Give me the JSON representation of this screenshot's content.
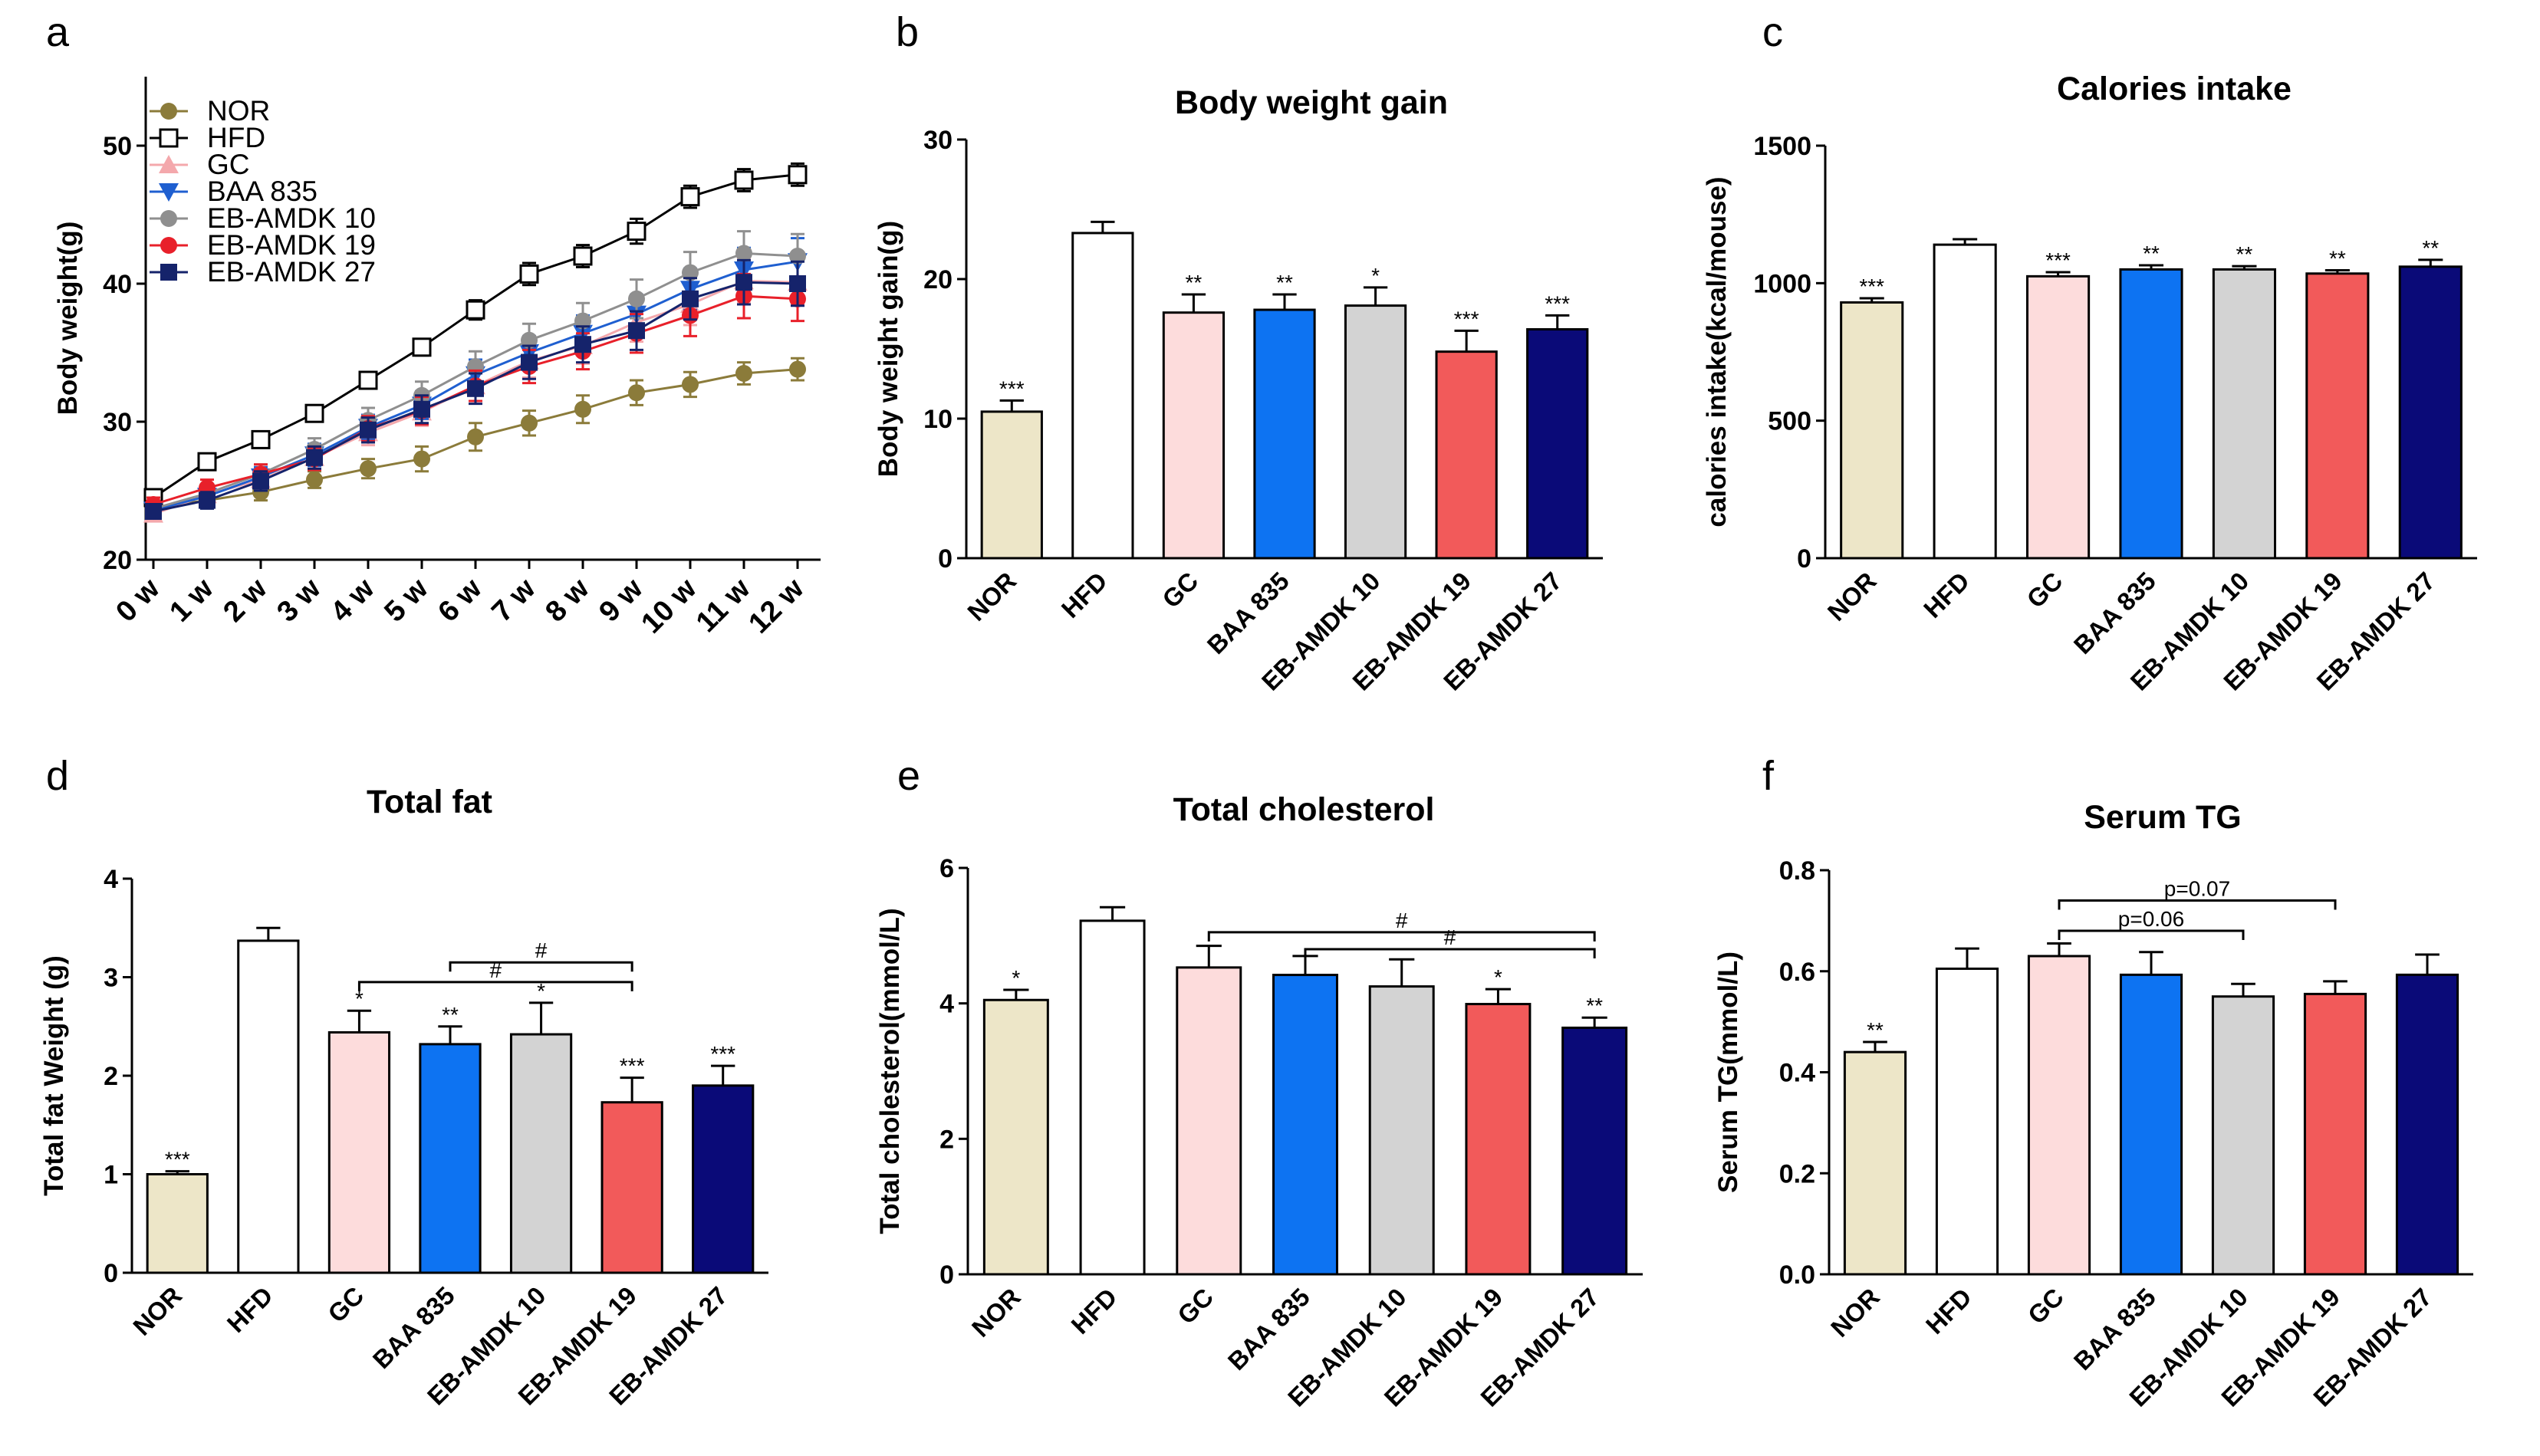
{
  "chart_data": [
    {
      "panel": "a",
      "type": "line",
      "title": "",
      "xlabel": "",
      "ylabel": "Body weight(g)",
      "ylim": [
        20,
        55
      ],
      "yticks": [
        20,
        30,
        40,
        50
      ],
      "x": [
        "0 w",
        "1 w",
        "2 w",
        "3 w",
        "4 w",
        "5 w",
        "6 w",
        "7 w",
        "8 w",
        "9 w",
        "10 w",
        "11 w",
        "12 w"
      ],
      "series": [
        {
          "name": "NOR",
          "color": "#8B7B3A",
          "marker": "circle",
          "values": [
            23.8,
            24.3,
            24.9,
            25.8,
            26.6,
            27.3,
            28.9,
            29.9,
            30.9,
            32.1,
            32.7,
            33.5,
            33.8
          ],
          "err": [
            0.5,
            0.5,
            0.6,
            0.6,
            0.7,
            0.9,
            1.0,
            0.9,
            1.0,
            0.9,
            0.9,
            0.8,
            0.8
          ]
        },
        {
          "name": "HFD",
          "color": "#000000",
          "marker": "square-open",
          "values": [
            24.5,
            27.1,
            28.7,
            30.6,
            33.0,
            35.4,
            38.1,
            40.7,
            42.0,
            43.8,
            46.3,
            47.5,
            47.9
          ],
          "err": [
            0.4,
            0.5,
            0.5,
            0.5,
            0.6,
            0.6,
            0.7,
            0.8,
            0.8,
            0.9,
            0.8,
            0.8,
            0.8
          ]
        },
        {
          "name": "GC",
          "color": "#F4A8AC",
          "marker": "triangle-up",
          "values": [
            23.3,
            24.7,
            25.8,
            27.4,
            29.2,
            30.7,
            32.6,
            34.4,
            35.5,
            37.2,
            38.5,
            40.2,
            40.1
          ],
          "err": [
            0.5,
            0.6,
            0.7,
            0.8,
            0.9,
            1.0,
            1.1,
            1.2,
            1.3,
            1.4,
            1.5,
            1.6,
            1.6
          ]
        },
        {
          "name": "BAA 835",
          "color": "#1F5FD0",
          "marker": "triangle-down",
          "values": [
            23.6,
            24.6,
            26.0,
            27.6,
            29.6,
            31.2,
            33.4,
            35.0,
            36.4,
            37.8,
            39.6,
            41.0,
            41.6
          ],
          "err": [
            0.5,
            0.6,
            0.7,
            0.8,
            0.9,
            1.0,
            1.1,
            1.2,
            1.3,
            1.4,
            1.5,
            1.6,
            1.7
          ]
        },
        {
          "name": "EB-AMDK 10",
          "color": "#8F8F8F",
          "marker": "circle",
          "values": [
            23.7,
            24.8,
            26.2,
            28.0,
            30.1,
            31.9,
            34.0,
            35.9,
            37.3,
            38.9,
            40.8,
            42.2,
            42.0
          ],
          "err": [
            0.5,
            0.6,
            0.7,
            0.8,
            0.9,
            1.0,
            1.1,
            1.2,
            1.3,
            1.4,
            1.5,
            1.6,
            1.6
          ]
        },
        {
          "name": "EB-AMDK 19",
          "color": "#E8202A",
          "marker": "circle",
          "values": [
            24.0,
            25.2,
            26.2,
            27.3,
            29.5,
            30.8,
            32.6,
            34.0,
            35.1,
            36.4,
            37.7,
            39.1,
            38.9
          ],
          "err": [
            0.5,
            0.6,
            0.7,
            0.8,
            0.9,
            1.0,
            1.1,
            1.2,
            1.3,
            1.4,
            1.5,
            1.6,
            1.6
          ]
        },
        {
          "name": "EB-AMDK 27",
          "color": "#15236B",
          "marker": "square",
          "values": [
            23.5,
            24.3,
            25.7,
            27.4,
            29.4,
            30.9,
            32.4,
            34.3,
            35.6,
            36.6,
            38.9,
            40.1,
            40.0
          ],
          "err": [
            0.5,
            0.6,
            0.7,
            0.8,
            0.9,
            1.0,
            1.1,
            1.2,
            1.3,
            1.4,
            1.5,
            1.6,
            1.6
          ]
        }
      ]
    },
    {
      "panel": "b",
      "type": "bar",
      "title": "Body weight gain",
      "ylabel": "Body weight gain(g)",
      "ylim": [
        0,
        30
      ],
      "yticks": [
        0,
        10,
        20,
        30
      ],
      "categories": [
        "NOR",
        "HFD",
        "GC",
        "BAA 835",
        "EB-AMDK 10",
        "EB-AMDK 19",
        "EB-AMDK 27"
      ],
      "values": [
        10.5,
        23.3,
        17.6,
        17.8,
        18.1,
        14.8,
        16.4
      ],
      "err": [
        0.8,
        0.8,
        1.3,
        1.1,
        1.3,
        1.5,
        1.0
      ],
      "significance": [
        "***",
        "",
        "**",
        "**",
        "*",
        "***",
        "***"
      ],
      "brackets": []
    },
    {
      "panel": "c",
      "type": "bar",
      "title": "Calories intake",
      "ylabel": "calories intake(kcal/mouse)",
      "ylim": [
        0,
        1500
      ],
      "yticks": [
        0,
        500,
        1000,
        1500
      ],
      "categories": [
        "NOR",
        "HFD",
        "GC",
        "BAA 835",
        "EB-AMDK 10",
        "EB-AMDK 19",
        "EB-AMDK 27"
      ],
      "values": [
        930,
        1140,
        1025,
        1050,
        1050,
        1035,
        1060
      ],
      "err": [
        15,
        20,
        15,
        15,
        12,
        12,
        25
      ],
      "significance": [
        "***",
        "",
        "***",
        "**",
        "**",
        "**",
        "**"
      ],
      "brackets": []
    },
    {
      "panel": "d",
      "type": "bar",
      "title": "Total fat",
      "ylabel": "Total fat Weight (g)",
      "ylim": [
        0,
        4
      ],
      "yticks": [
        0,
        1,
        2,
        3,
        4
      ],
      "categories": [
        "NOR",
        "HFD",
        "GC",
        "BAA 835",
        "EB-AMDK 10",
        "EB-AMDK 19",
        "EB-AMDK 27"
      ],
      "values": [
        1.0,
        3.37,
        2.44,
        2.32,
        2.42,
        1.73,
        1.9
      ],
      "err": [
        0.03,
        0.13,
        0.22,
        0.18,
        0.32,
        0.25,
        0.2
      ],
      "significance": [
        "***",
        "",
        "*",
        "**",
        "*",
        "***",
        "***"
      ],
      "brackets": [
        {
          "from": 2,
          "to": 5,
          "y": 2.95,
          "label": "#"
        },
        {
          "from": 3,
          "to": 5,
          "y": 3.15,
          "label": "#"
        }
      ]
    },
    {
      "panel": "e",
      "type": "bar",
      "title": "Total cholesterol",
      "ylabel": "Total cholesterol(mmol/L)",
      "ylim": [
        0,
        6
      ],
      "yticks": [
        0,
        2,
        4,
        6
      ],
      "categories": [
        "NOR",
        "HFD",
        "GC",
        "BAA 835",
        "EB-AMDK 10",
        "EB-AMDK 19",
        "EB-AMDK 27"
      ],
      "values": [
        4.05,
        5.22,
        4.53,
        4.42,
        4.25,
        3.99,
        3.64
      ],
      "err": [
        0.15,
        0.2,
        0.32,
        0.28,
        0.4,
        0.22,
        0.15
      ],
      "significance": [
        "*",
        "",
        "",
        "",
        "",
        "*",
        "**"
      ],
      "brackets": [
        {
          "from": 2,
          "to": 6,
          "y": 5.05,
          "label": "#"
        },
        {
          "from": 3,
          "to": 6,
          "y": 4.8,
          "label": "#"
        }
      ]
    },
    {
      "panel": "f",
      "type": "bar",
      "title": "Serum TG",
      "ylabel": "Serum TG(mmol/L)",
      "ylim": [
        0,
        0.8
      ],
      "yticks": [
        0.0,
        0.2,
        0.4,
        0.6,
        0.8
      ],
      "categories": [
        "NOR",
        "HFD",
        "GC",
        "BAA 835",
        "EB-AMDK 10",
        "EB-AMDK 19",
        "EB-AMDK 27"
      ],
      "values": [
        0.44,
        0.605,
        0.63,
        0.593,
        0.55,
        0.555,
        0.593
      ],
      "err": [
        0.02,
        0.04,
        0.025,
        0.045,
        0.025,
        0.025,
        0.04
      ],
      "significance": [
        "**",
        "",
        "",
        "",
        "",
        "",
        ""
      ],
      "brackets": [
        {
          "from": 2,
          "to": 5,
          "y": 0.74,
          "label": "p=0.07"
        },
        {
          "from": 2,
          "to": 4,
          "y": 0.68,
          "label": "p=0.06"
        }
      ]
    }
  ],
  "bar_colors": [
    "#EDE6C8",
    "#FFFFFF",
    "#FDDCDC",
    "#0D73F2",
    "#D3D3D3",
    "#F25A5A",
    "#0A0A78"
  ],
  "panel_labels": [
    "a",
    "b",
    "c",
    "d",
    "e",
    "f"
  ]
}
